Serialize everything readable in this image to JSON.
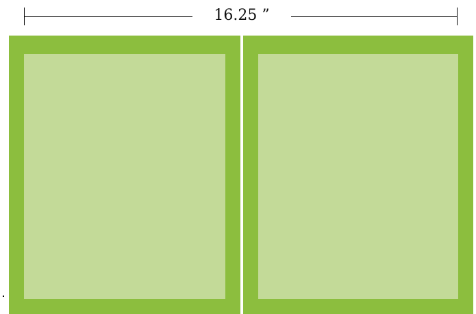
{
  "dimension": {
    "label": "16.25 ”"
  },
  "colors": {
    "panel_border": "#8cbe3e",
    "panel_fill": "#c3da98",
    "line": "#000000"
  },
  "panels": [
    {
      "name": "left-panel"
    },
    {
      "name": "right-panel"
    }
  ]
}
